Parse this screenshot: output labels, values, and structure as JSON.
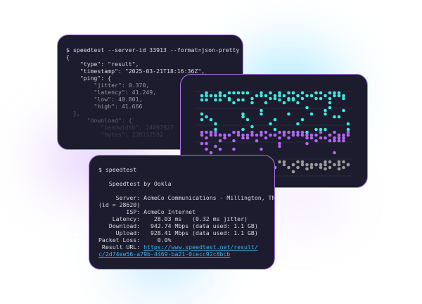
{
  "json_terminal": {
    "command": "$ speedtest --server-id 33913 --format=json-pretty",
    "lines": [
      "{",
      "    \"type\": \"result\",",
      "    \"timestamp\": \"2025-03-21T18:16:36Z\",",
      "    \"ping\": {",
      "        \"jitter\": 0.370,",
      "        \"latency\": 41.249,",
      "        \"low\": 40.801,",
      "        \"high\": 41.666",
      "  },",
      "      \"download\": {",
      "          \"bandwidth\": 24097927",
      "          \"bytes\": 239152592"
    ]
  },
  "chart": {
    "colors": {
      "latency": "#3ee8dc",
      "download": "#b266f0",
      "upload": "#9a9a9a",
      "grid": "#2a2a40"
    }
  },
  "cli_terminal": {
    "command": "$ speedtest",
    "title": "   Speedtest by Ookla",
    "server": "     Server: AcmeCo Communications - Millington, TN",
    "server_id": "(id = 28620)",
    "isp": "        ISP: AcmeCo Internet",
    "latency": "    Latency:    28.03 ms   (0.32 ms jitter)",
    "download": "   Download:   942.74 Mbps (data used: 1.1 GB)",
    "upload": "     Upload:   928.41 Mbps (data used: 1.1 GB)",
    "packet_loss": "Packet Loss:     0.0%",
    "result_label": " Result URL: ",
    "result_url_1": "https://www.speedtest.net/result/",
    "result_url_2": "c/2d74ee56-a79b-4469-ba21-0cecc92c8bcb"
  }
}
